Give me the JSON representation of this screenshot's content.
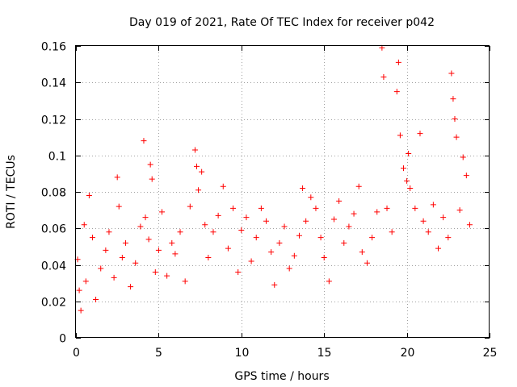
{
  "chart_data": {
    "type": "scatter",
    "title": "Day 019 of 2021, Rate Of TEC Index for receiver p042",
    "xlabel": "GPS time / hours",
    "ylabel": "ROTI / TECUs",
    "xlim": [
      0,
      25
    ],
    "ylim": [
      0,
      0.16
    ],
    "xticks": [
      0,
      5,
      10,
      15,
      20,
      25
    ],
    "xtick_labels": [
      "0",
      "5",
      "10",
      "15",
      "20",
      "25"
    ],
    "yticks": [
      0,
      0.02,
      0.04,
      0.06,
      0.08,
      0.1,
      0.12,
      0.14,
      0.16
    ],
    "ytick_labels": [
      "0",
      "0.02",
      "0.04",
      "0.06",
      "0.08",
      "0.1",
      "0.12",
      "0.14",
      "0.16"
    ],
    "grid": true,
    "marker": "plus",
    "color": "#ff0000",
    "series": [
      {
        "name": "ROTI",
        "x": [
          0.1,
          0.2,
          0.3,
          0.5,
          0.6,
          0.8,
          1.0,
          1.2,
          1.5,
          1.8,
          2.0,
          2.3,
          2.5,
          2.6,
          2.8,
          3.0,
          3.3,
          3.6,
          3.9,
          4.1,
          4.2,
          4.4,
          4.5,
          4.6,
          4.8,
          5.0,
          5.2,
          5.5,
          5.8,
          6.0,
          6.3,
          6.6,
          6.9,
          7.2,
          7.3,
          7.4,
          7.6,
          7.8,
          8.0,
          8.3,
          8.6,
          8.9,
          9.2,
          9.5,
          9.8,
          10.0,
          10.3,
          10.6,
          10.9,
          11.2,
          11.5,
          11.8,
          12.0,
          12.3,
          12.6,
          12.9,
          13.2,
          13.5,
          13.7,
          13.9,
          14.2,
          14.5,
          14.8,
          15.0,
          15.3,
          15.6,
          15.9,
          16.2,
          16.5,
          16.8,
          17.1,
          17.3,
          17.6,
          17.9,
          18.2,
          18.5,
          18.6,
          18.8,
          19.1,
          19.4,
          19.5,
          19.6,
          19.8,
          20.0,
          20.1,
          20.2,
          20.5,
          20.8,
          21.0,
          21.3,
          21.6,
          21.9,
          22.2,
          22.5,
          22.7,
          22.8,
          22.9,
          23.0,
          23.2,
          23.4,
          23.6,
          23.8
        ],
        "y": [
          0.043,
          0.026,
          0.015,
          0.062,
          0.031,
          0.078,
          0.055,
          0.021,
          0.038,
          0.048,
          0.058,
          0.033,
          0.088,
          0.072,
          0.044,
          0.052,
          0.028,
          0.041,
          0.061,
          0.108,
          0.066,
          0.054,
          0.095,
          0.087,
          0.036,
          0.048,
          0.069,
          0.034,
          0.052,
          0.046,
          0.058,
          0.031,
          0.072,
          0.103,
          0.094,
          0.081,
          0.091,
          0.062,
          0.044,
          0.058,
          0.067,
          0.083,
          0.049,
          0.071,
          0.036,
          0.059,
          0.066,
          0.042,
          0.055,
          0.071,
          0.064,
          0.047,
          0.029,
          0.052,
          0.061,
          0.038,
          0.045,
          0.056,
          0.082,
          0.064,
          0.077,
          0.071,
          0.055,
          0.044,
          0.031,
          0.065,
          0.075,
          0.052,
          0.061,
          0.068,
          0.083,
          0.047,
          0.041,
          0.055,
          0.069,
          0.159,
          0.143,
          0.071,
          0.058,
          0.135,
          0.151,
          0.111,
          0.093,
          0.086,
          0.101,
          0.082,
          0.071,
          0.112,
          0.064,
          0.058,
          0.073,
          0.049,
          0.066,
          0.055,
          0.145,
          0.131,
          0.12,
          0.11,
          0.07,
          0.099,
          0.089,
          0.062
        ]
      }
    ]
  }
}
